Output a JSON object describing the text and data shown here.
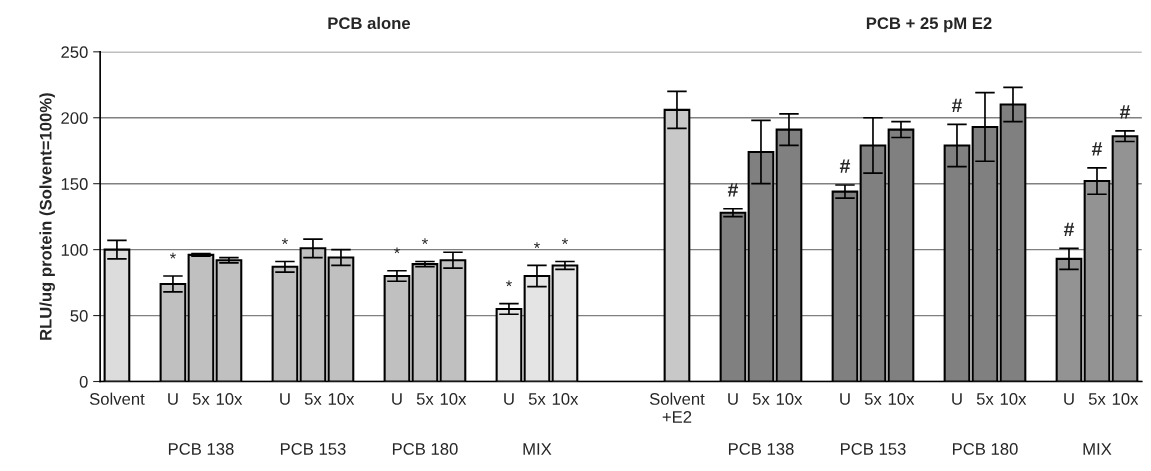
{
  "chart_data": {
    "type": "bar",
    "ylabel": "RLU/ug protein (Solvent=100%)",
    "categories": [
      "Solvent",
      null,
      "U",
      "5x",
      "10x",
      null,
      "U",
      "5x",
      "10x",
      null,
      "U",
      "5x",
      "10x",
      null,
      "U",
      "5x",
      "10x",
      null,
      null,
      null,
      "Solvent\n+E2",
      null,
      "U",
      "5x",
      "10x",
      null,
      "U",
      "5x",
      "10x",
      null,
      "U",
      "5x",
      "10x",
      null,
      "U",
      "5x",
      "10x"
    ],
    "values": [
      100,
      null,
      74,
      96,
      92,
      null,
      87,
      101,
      94,
      null,
      80,
      89,
      92,
      null,
      55,
      80,
      88,
      null,
      null,
      null,
      206,
      null,
      128,
      174,
      191,
      null,
      144,
      179,
      191,
      null,
      179,
      193,
      210,
      null,
      93,
      152,
      186
    ],
    "errors": [
      7,
      null,
      6,
      1,
      2,
      null,
      4,
      7,
      6,
      null,
      4,
      2,
      6,
      null,
      4,
      8,
      3,
      null,
      null,
      null,
      14,
      null,
      3,
      24,
      12,
      null,
      5,
      21,
      6,
      null,
      16,
      26,
      13,
      null,
      8,
      10,
      4
    ],
    "value_labels": [
      null,
      null,
      "*",
      null,
      null,
      null,
      "*",
      null,
      null,
      null,
      "*",
      "*",
      null,
      null,
      "*",
      "*",
      "*",
      null,
      null,
      null,
      null,
      null,
      "#",
      null,
      null,
      null,
      "#",
      null,
      null,
      null,
      "#",
      null,
      null,
      null,
      "#",
      "#",
      "#"
    ],
    "colors": [
      "#dcdcdc",
      null,
      "#c0c0c0",
      "#c0c0c0",
      "#c0c0c0",
      null,
      "#c0c0c0",
      "#c0c0c0",
      "#c0c0c0",
      null,
      "#c0c0c0",
      "#c0c0c0",
      "#c0c0c0",
      null,
      "#e4e4e4",
      "#e4e4e4",
      "#e4e4e4",
      null,
      null,
      null,
      "#c8c8c8",
      null,
      "#808080",
      "#808080",
      "#808080",
      null,
      "#808080",
      "#808080",
      "#808080",
      null,
      "#808080",
      "#808080",
      "#808080",
      null,
      "#939393",
      "#939393",
      "#939393"
    ],
    "annotations": [
      "PCB alone",
      "PCB + 25 pM E2",
      "PCB 138",
      "PCB 153",
      "PCB 180",
      "MIX",
      "PCB 138",
      "PCB 153",
      "PCB 180",
      "MIX"
    ],
    "ylim": [
      0,
      250
    ],
    "yticks": [
      0,
      50,
      100,
      150,
      200,
      250
    ],
    "grid": "y",
    "legend": false
  }
}
